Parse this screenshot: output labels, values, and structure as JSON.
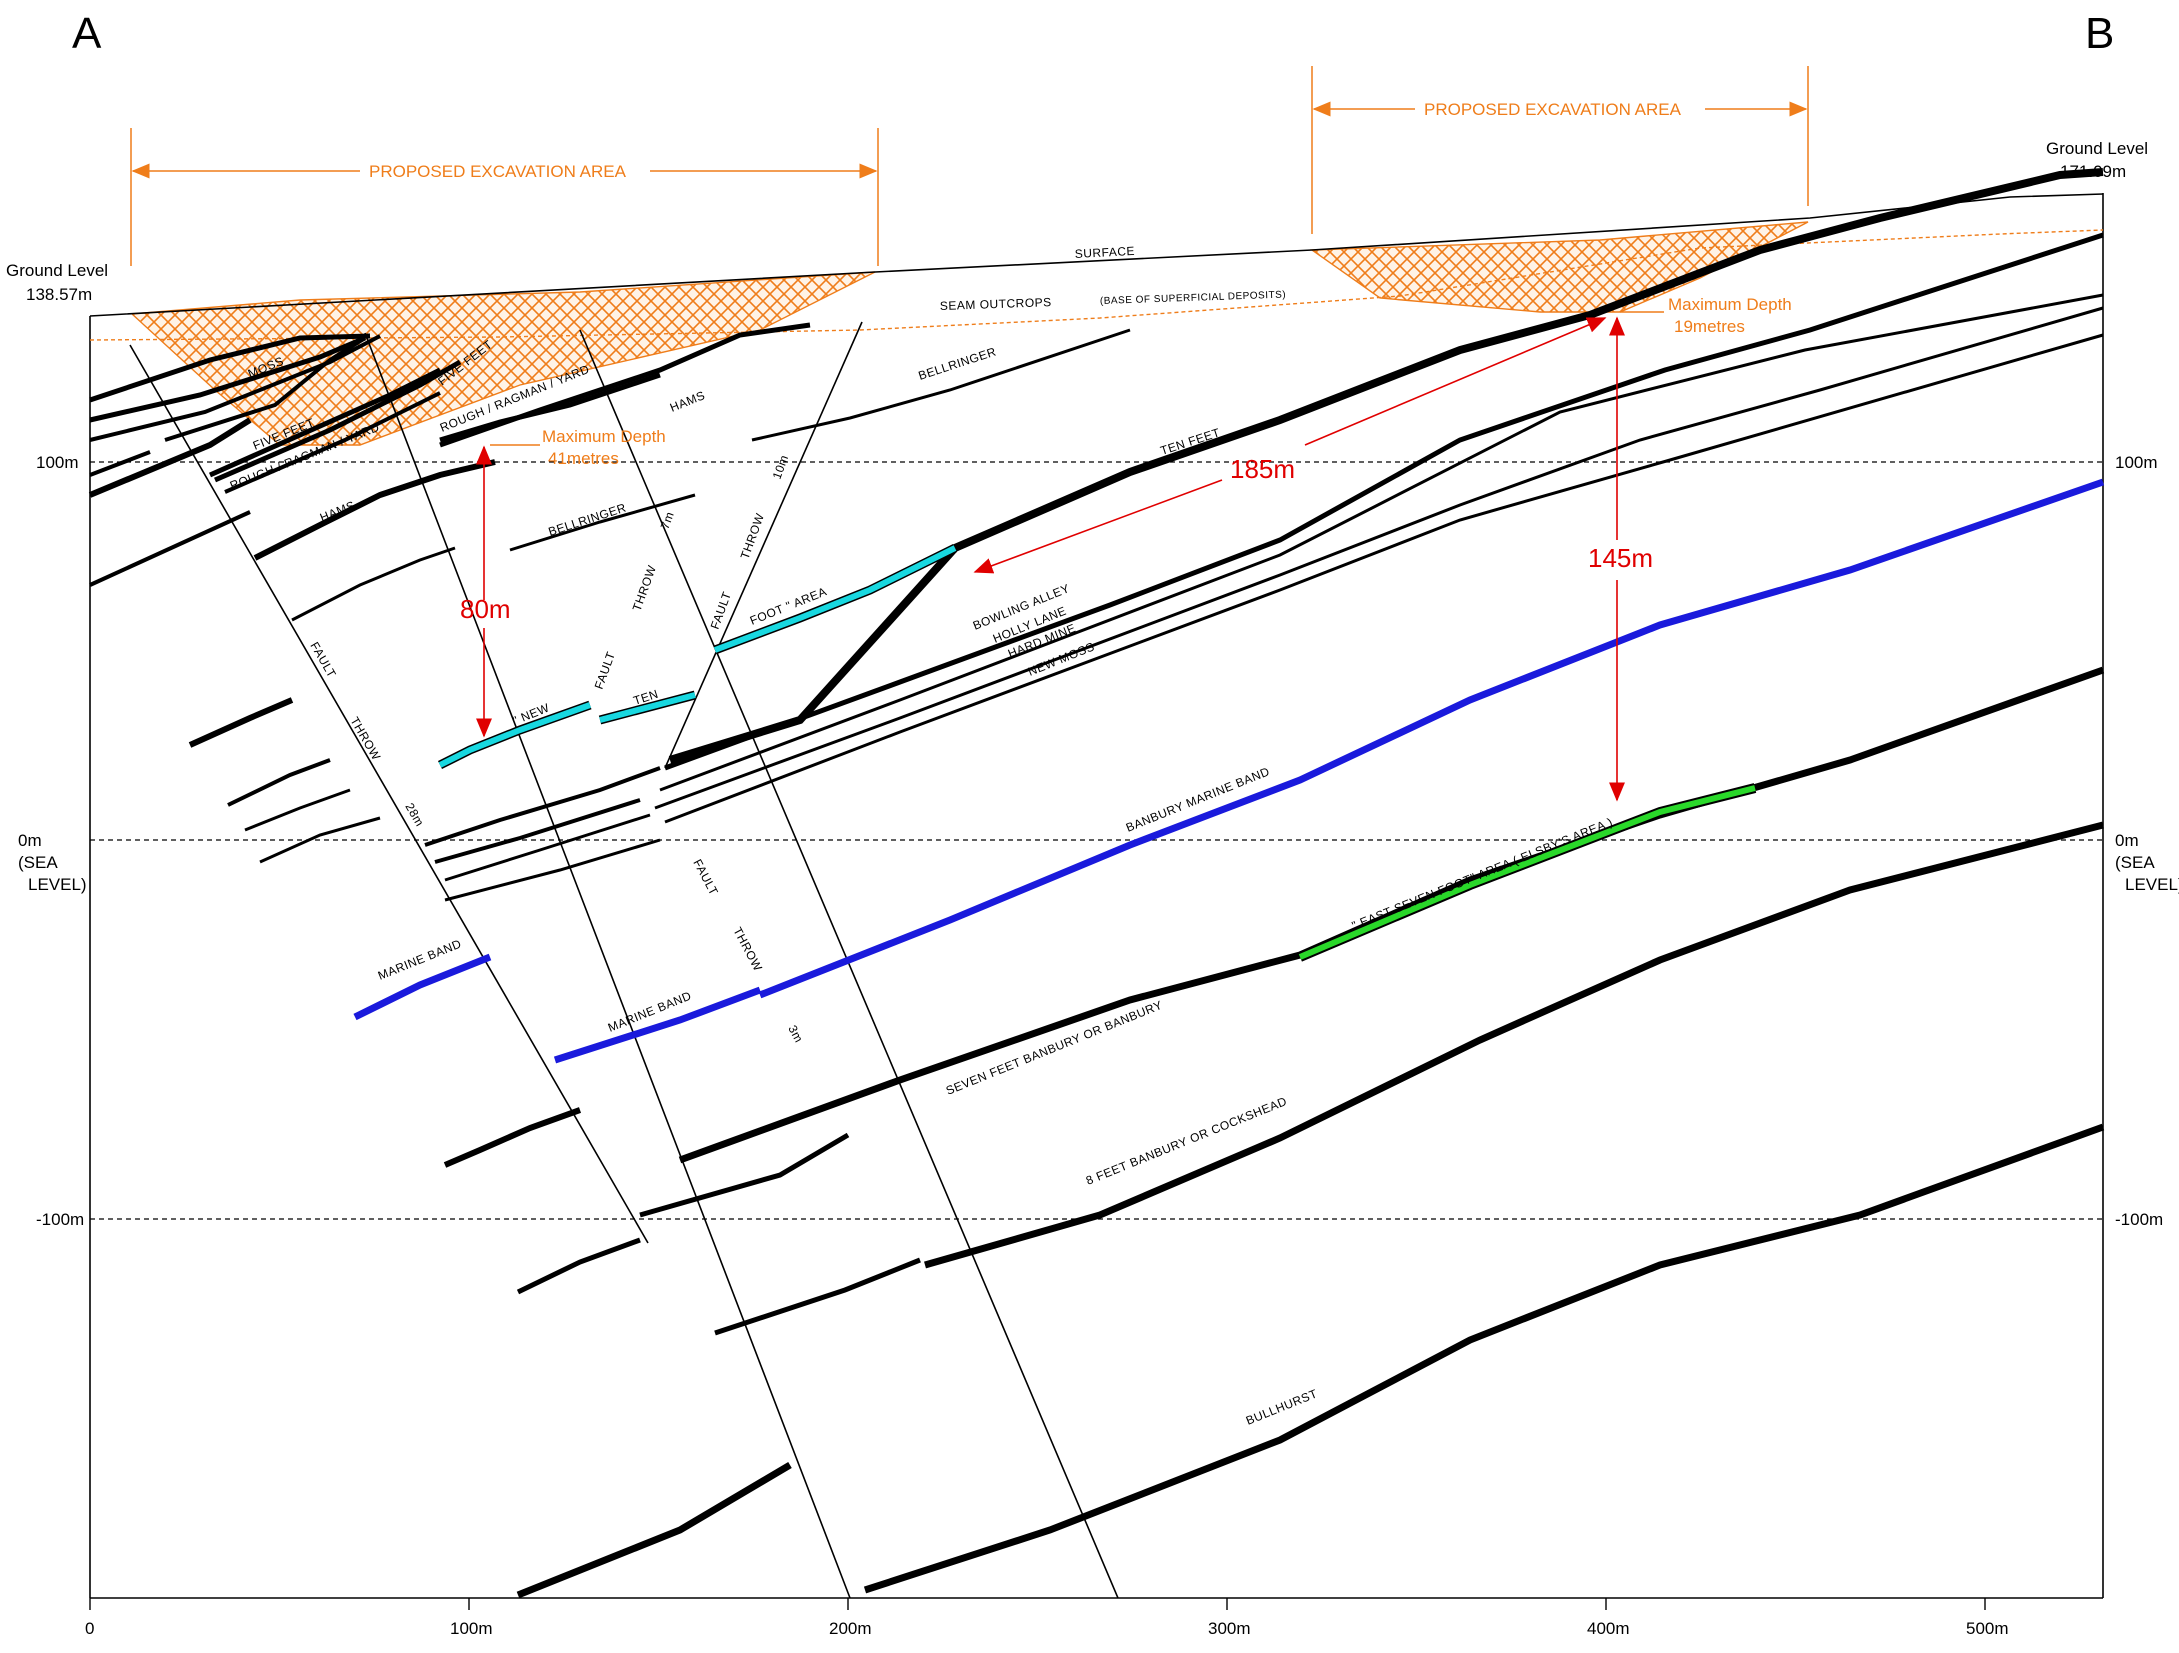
{
  "corners": {
    "left": "A",
    "right": "B"
  },
  "ground_level": {
    "left_label": "Ground Level",
    "left_value": "138.57m",
    "right_label": "Ground Level",
    "right_value": "171.09m"
  },
  "excavation": {
    "label_1": "PROPOSED EXCAVATION AREA",
    "label_2": "PROPOSED EXCAVATION AREA",
    "depth_1_title": "Maximum Depth",
    "depth_1_value": "41metres",
    "depth_2_title": "Maximum Depth",
    "depth_2_value": "19metres",
    "color": "#ef7d1a"
  },
  "surface": {
    "label": "SURFACE",
    "outcrops": "SEAM  OUTCROPS",
    "outcrops_note": "(BASE OF SUPERFICIAL DEPOSITS)"
  },
  "dimensions": {
    "d80": "80m",
    "d185": "185m",
    "d145": "145m",
    "color": "#e00000"
  },
  "axes": {
    "y_left": [
      "100m",
      "0m",
      "(SEA",
      "LEVEL)",
      "-100m"
    ],
    "y_right": [
      "100m",
      "0m",
      "(SEA",
      "LEVEL)",
      "-100m"
    ],
    "x_ticks": [
      "0",
      "100m",
      "200m",
      "300m",
      "400m",
      "500m"
    ]
  },
  "faults": {
    "f1": "FAULT",
    "f1b": "THROW",
    "f1c": "28m",
    "f2": "FAULT",
    "f2b": "THROW",
    "f2c": "7m",
    "f3": "FAULT",
    "f3b": "THROW",
    "f3c": "10m",
    "f4": "FAULT",
    "f4b": "THROW",
    "f4c": "3m"
  },
  "seams": {
    "moss": "MOSS",
    "five_feet_a": "FIVE   FEET",
    "rough_a": "ROUGH  /  RAGMAN  /  YARD",
    "five_feet_b": "FIVE   FEET",
    "rough_b": "ROUGH  /  RAGMAN  /  YARD",
    "hams_a": "HAMS",
    "hams_b": "HAMS",
    "bellringer_a": "BELLRINGER",
    "bellringer_b": "BELLRINGER",
    "ten_feet": "TEN   FEET",
    "foot_area": "FOOT \"  AREA",
    "new": "\"  NEW",
    "ten": "TEN",
    "bowling_alley": "BOWLING ALLEY",
    "holly_lane": "HOLLY LANE",
    "hard_mine": "HARD MINE",
    "new_moss": "NEW MOSS",
    "banbury_marine": "BANBURY  MARINE  BAND",
    "marine_a": "MARINE BAND",
    "marine_b": "MARINE BAND",
    "east_seven": "\" EAST SEVEN FOOT\"    AREA    ( ELSBY'S AREA )",
    "seven_feet": "SEVEN  FEET  BANBURY  OR  BANBURY",
    "eight_feet": "8 FEET BANBURY   OR   COCKSHEAD",
    "bullhurst": "BULLHURST"
  },
  "colors": {
    "cyan": "#18d8e0",
    "blue": "#1a1adc",
    "green": "#2ad82a",
    "black": "#000000"
  }
}
